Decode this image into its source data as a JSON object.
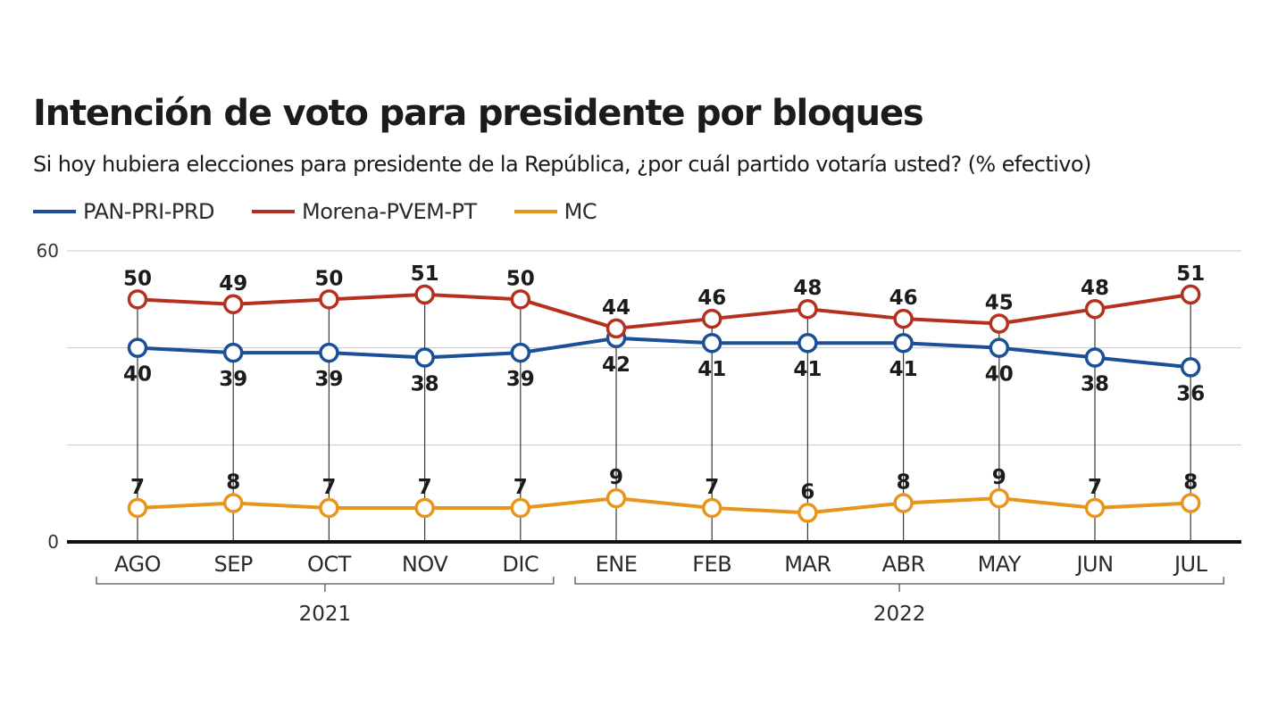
{
  "header": {
    "title": "Intención de voto para presidente por bloques",
    "subtitle": "Si hoy hubiera elecciones para presidente de la República, ¿por cuál partido votaría usted? (% efectivo)"
  },
  "chart_data": {
    "type": "line",
    "title": "Intención de voto para presidente por bloques",
    "subtitle": "Si hoy hubiera elecciones para presidente de la República, ¿por cuál partido votaría usted? (% efectivo)",
    "xlabel": "",
    "ylabel": "",
    "categories": [
      "AGO",
      "SEP",
      "OCT",
      "NOV",
      "DIC",
      "ENE",
      "FEB",
      "MAR",
      "ABR",
      "MAY",
      "JUN",
      "JUL"
    ],
    "year_groups": [
      {
        "label": "2021",
        "from": 0,
        "to": 4
      },
      {
        "label": "2022",
        "from": 5,
        "to": 11
      }
    ],
    "ylim": [
      0,
      60
    ],
    "yticks": [
      0,
      60
    ],
    "gridlines": [
      20,
      40,
      60
    ],
    "grid": true,
    "legend_position": "top-left",
    "series": [
      {
        "name": "PAN-PRI-PRD",
        "color": "#1b4f96",
        "label_position": "below",
        "values": [
          40,
          39,
          39,
          38,
          39,
          42,
          41,
          41,
          41,
          40,
          38,
          36
        ]
      },
      {
        "name": "Morena-PVEM-PT",
        "color": "#b5301f",
        "label_position": "above",
        "values": [
          50,
          49,
          50,
          51,
          50,
          44,
          46,
          48,
          46,
          45,
          48,
          51
        ]
      },
      {
        "name": "MC",
        "color": "#e8951c",
        "label_position": "above",
        "values": [
          7,
          8,
          7,
          7,
          7,
          9,
          7,
          6,
          8,
          9,
          7,
          8
        ]
      }
    ]
  }
}
